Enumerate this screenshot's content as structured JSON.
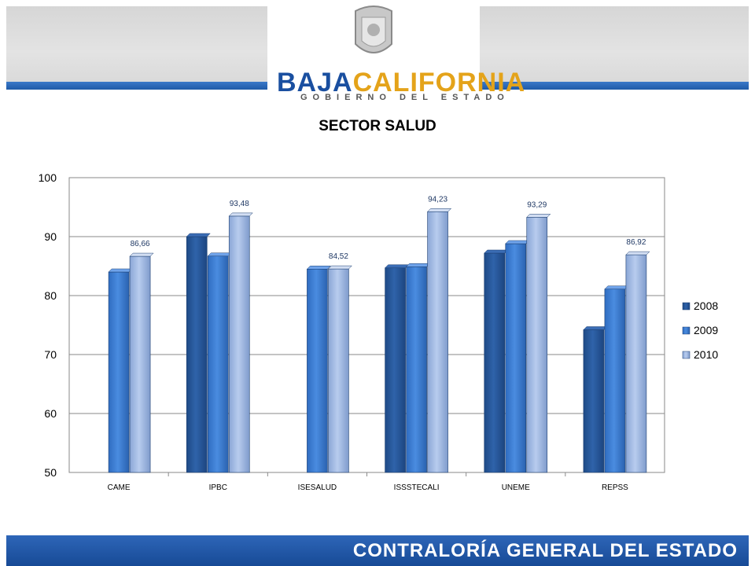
{
  "header": {
    "logo_main_1": "BAJA",
    "logo_main_2": "CALIFORNIA",
    "logo_sub": "GOBIERNO DEL ESTADO"
  },
  "footer": {
    "text": "CONTRALORÍA GENERAL DEL ESTADO"
  },
  "colors": {
    "header_rule": "#1f5aa8",
    "footer": "#1a4e9c"
  },
  "chart_data": {
    "type": "bar",
    "title": "SECTOR SALUD",
    "categories": [
      "CAME",
      "IPBC",
      "ISESALUD",
      "ISSSTECALI",
      "UNEME",
      "REPSS"
    ],
    "series": [
      {
        "name": "2008",
        "color": "#2a5b9e",
        "values": [
          null,
          90.0,
          null,
          84.7,
          87.2,
          74.2
        ]
      },
      {
        "name": "2009",
        "color": "#3d7ed6",
        "values": [
          84.0,
          86.7,
          84.5,
          84.9,
          88.8,
          81.1
        ]
      },
      {
        "name": "2010",
        "color": "#a9c0e6",
        "values": [
          86.66,
          93.48,
          84.52,
          94.23,
          93.29,
          86.92
        ]
      }
    ],
    "data_labels_2010": [
      "86,66",
      "93,48",
      "84,52",
      "94,23",
      "93,29",
      "86,92"
    ],
    "yticks": [
      "50",
      "60",
      "70",
      "80",
      "90",
      "100"
    ],
    "ylim": [
      50,
      100
    ],
    "legend_position": "right"
  }
}
